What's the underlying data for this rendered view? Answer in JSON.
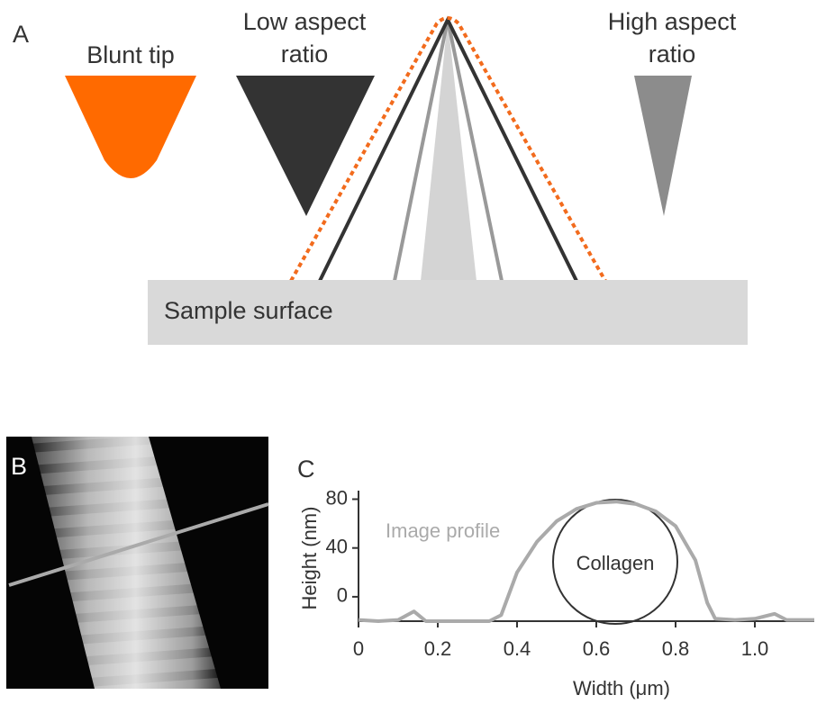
{
  "panel_a": {
    "label": "A",
    "blunt_tip": "Blunt tip",
    "low_aspect": [
      "Low aspect",
      "ratio"
    ],
    "high_aspect": [
      "High aspect",
      "ratio"
    ],
    "surface": "Sample surface"
  },
  "panel_b": {
    "label": "B"
  },
  "chart_data": {
    "type": "line",
    "panel_label": "C",
    "x_label": "Width (μm)",
    "y_label": "Height (nm)",
    "annotations": [
      "Image profile",
      "Collagen"
    ],
    "series": [
      {
        "color": "#aaaaaa",
        "x": [
          0,
          0.05,
          0.1,
          0.14,
          0.17,
          0.25,
          0.33,
          0.36,
          0.4,
          0.45,
          0.5,
          0.55,
          0.6,
          0.65,
          0.7,
          0.75,
          0.8,
          0.85,
          0.88,
          0.9,
          0.95,
          1.0,
          1.05,
          1.08,
          1.15
        ],
        "values": [
          -19,
          -20,
          -19,
          -12,
          -20,
          -20,
          -20,
          -15,
          20,
          45,
          62,
          72,
          77,
          78,
          76,
          70,
          58,
          30,
          -5,
          -18,
          -19,
          -18,
          -14,
          -19,
          -19
        ]
      }
    ],
    "xlim": [
      0,
      1.15
    ],
    "ylim": [
      -20,
      87
    ],
    "xticks": [
      0,
      0.2,
      0.4,
      0.6,
      0.8,
      {
        "value": 1,
        "label": "1.0"
      }
    ],
    "yticks": [
      0,
      40,
      80
    ]
  }
}
